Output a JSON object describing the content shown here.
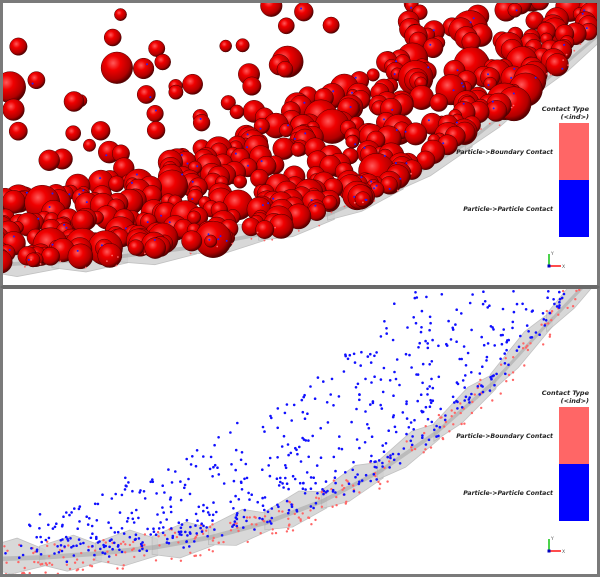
{
  "colors": {
    "particle_red": "#e00000",
    "boundary_contact": "#ff6666",
    "particle_contact": "#0000ff",
    "wall_gray": "#c8c8c8",
    "frame_border": "#7a7a7a",
    "axis_x": "#ff0000",
    "axis_y": "#00c000",
    "axis_z": "#0000c0"
  },
  "viewports": [
    {
      "name": "top",
      "description": "Particles rendered as spheres with contacts",
      "legend": {
        "title": "Contact Type",
        "subtitle": "(<ind>)",
        "entries": [
          {
            "label": "Particle->Boundary Contact",
            "color": "#ff6666"
          },
          {
            "label": "Particle->Particle Contact",
            "color": "#0000ff"
          }
        ]
      },
      "axes": {
        "x": "X",
        "y": "Y"
      }
    },
    {
      "name": "bottom",
      "description": "Contact points only, with boundary wall",
      "legend": {
        "title": "Contact Type",
        "subtitle": "(<ind>)",
        "entries": [
          {
            "label": "Particle->Boundary Contact",
            "color": "#ff6666"
          },
          {
            "label": "Particle->Particle Contact",
            "color": "#0000ff"
          }
        ]
      },
      "axes": {
        "x": "X",
        "y": "Y"
      }
    }
  ]
}
